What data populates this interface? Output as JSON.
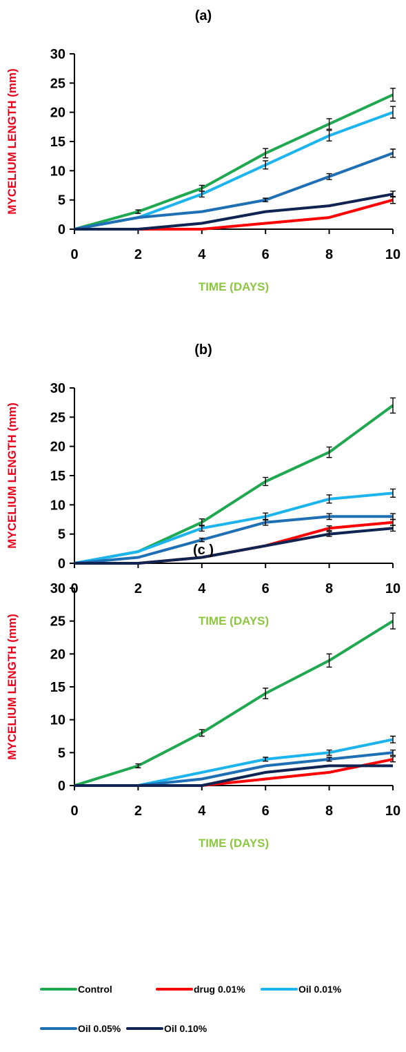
{
  "chart_data": [
    {
      "type": "line",
      "title": "(a)",
      "xlabel": "TIME (DAYS)",
      "ylabel": "MYCELIUM LENGTH (mm)",
      "x": [
        0,
        2,
        4,
        6,
        8,
        10
      ],
      "xticks": [
        "0",
        "2",
        "4",
        "6",
        "8",
        "10"
      ],
      "yticks": [
        "0",
        "5",
        "10",
        "15",
        "20",
        "25",
        "30"
      ],
      "xlim": [
        0,
        10
      ],
      "ylim": [
        0,
        30
      ],
      "series": [
        {
          "name": "Control",
          "color": "#1fa84f",
          "values": [
            0,
            3,
            7,
            13,
            18,
            23
          ],
          "errors": [
            0,
            0.3,
            0.5,
            0.8,
            0.9,
            1.1
          ]
        },
        {
          "name": "drug 0.01%",
          "color": "#ff0000",
          "values": [
            0,
            0,
            0,
            1,
            2,
            5
          ],
          "errors": [
            0,
            0,
            0,
            0,
            0,
            0.6
          ]
        },
        {
          "name": "Oil 0.01%",
          "color": "#1cb4ec",
          "values": [
            0,
            2,
            6,
            11,
            16,
            20
          ],
          "errors": [
            0,
            0,
            0.5,
            0.7,
            0.9,
            1.0
          ]
        },
        {
          "name": "Oil 0.05%",
          "color": "#1f6fb4",
          "values": [
            0,
            2,
            3,
            5,
            9,
            13
          ],
          "errors": [
            0,
            0,
            0,
            0.3,
            0.5,
            0.7
          ]
        },
        {
          "name": "Oil 0.10%",
          "color": "#0f2451",
          "values": [
            0,
            0,
            1,
            3,
            4,
            6
          ],
          "errors": [
            0,
            0,
            0,
            0,
            0,
            0.5
          ]
        }
      ]
    },
    {
      "type": "line",
      "title": "(b)",
      "xlabel": "TIME (DAYS)",
      "ylabel": "MYCELIUM LENGTH (mm)",
      "x": [
        0,
        2,
        4,
        6,
        8,
        10
      ],
      "xticks": [
        "0",
        "2",
        "4",
        "6",
        "8",
        "10"
      ],
      "yticks": [
        "0",
        "5",
        "10",
        "15",
        "20",
        "25",
        "30"
      ],
      "xlim": [
        0,
        10
      ],
      "ylim": [
        0,
        30
      ],
      "series": [
        {
          "name": "Control",
          "color": "#1fa84f",
          "values": [
            0,
            2,
            7,
            14,
            19,
            27
          ],
          "errors": [
            0,
            0,
            0.6,
            0.7,
            0.9,
            1.3
          ]
        },
        {
          "name": "drug 0.01%",
          "color": "#ff0000",
          "values": [
            0,
            0,
            1,
            3,
            6,
            7
          ],
          "errors": [
            0,
            0,
            0,
            0,
            0.4,
            0.5
          ]
        },
        {
          "name": "Oil 0.01%",
          "color": "#1cb4ec",
          "values": [
            0,
            2,
            6,
            8,
            11,
            12
          ],
          "errors": [
            0,
            0,
            0.5,
            0.6,
            0.7,
            0.7
          ]
        },
        {
          "name": "Oil 0.05%",
          "color": "#1f6fb4",
          "values": [
            0,
            1,
            4,
            7,
            8,
            8
          ],
          "errors": [
            0,
            0,
            0.3,
            0.5,
            0.5,
            0.5
          ]
        },
        {
          "name": "Oil 0.10%",
          "color": "#0f2451",
          "values": [
            0,
            0,
            1,
            3,
            5,
            6
          ],
          "errors": [
            0,
            0,
            0,
            0,
            0.4,
            0.5
          ]
        }
      ]
    },
    {
      "type": "line",
      "title": "(c )",
      "xlabel": "TIME (DAYS)",
      "ylabel": "MYCELIUM LENGTH (mm)",
      "x": [
        0,
        2,
        4,
        6,
        8,
        10
      ],
      "xticks": [
        "0",
        "2",
        "4",
        "6",
        "8",
        "10"
      ],
      "yticks": [
        "0",
        "5",
        "10",
        "15",
        "20",
        "25",
        "30"
      ],
      "xlim": [
        0,
        10
      ],
      "ylim": [
        0,
        30
      ],
      "series": [
        {
          "name": "Control",
          "color": "#1fa84f",
          "values": [
            0,
            3,
            8,
            14,
            19,
            25
          ],
          "errors": [
            0,
            0.3,
            0.5,
            0.8,
            1.0,
            1.2
          ]
        },
        {
          "name": "drug 0.01%",
          "color": "#ff0000",
          "values": [
            0,
            0,
            0,
            1,
            2,
            4
          ],
          "errors": [
            0,
            0,
            0,
            0,
            0,
            0.4
          ]
        },
        {
          "name": "Oil 0.01%",
          "color": "#1cb4ec",
          "values": [
            0,
            0,
            2,
            4,
            5,
            7
          ],
          "errors": [
            0,
            0,
            0,
            0.3,
            0.4,
            0.5
          ]
        },
        {
          "name": "Oil 0.05%",
          "color": "#1f6fb4",
          "values": [
            0,
            0,
            1,
            3,
            4,
            5
          ],
          "errors": [
            0,
            0,
            0,
            0,
            0.3,
            0.4
          ]
        },
        {
          "name": "Oil 0.10%",
          "color": "#0f2451",
          "values": [
            0,
            0,
            0,
            2,
            3,
            3
          ],
          "errors": [
            0,
            0,
            0,
            0,
            0,
            0
          ]
        }
      ]
    }
  ],
  "legend": {
    "placement": "bottom",
    "entries": [
      {
        "label": "Control",
        "color": "#1fa84f"
      },
      {
        "label": "drug 0.01%",
        "color": "#ff0000"
      },
      {
        "label": "Oil 0.01%",
        "color": "#1cb4ec"
      },
      {
        "label": "Oil 0.05%",
        "color": "#1f6fb4"
      },
      {
        "label": "Oil 0.10%",
        "color": "#0f2451"
      }
    ]
  }
}
